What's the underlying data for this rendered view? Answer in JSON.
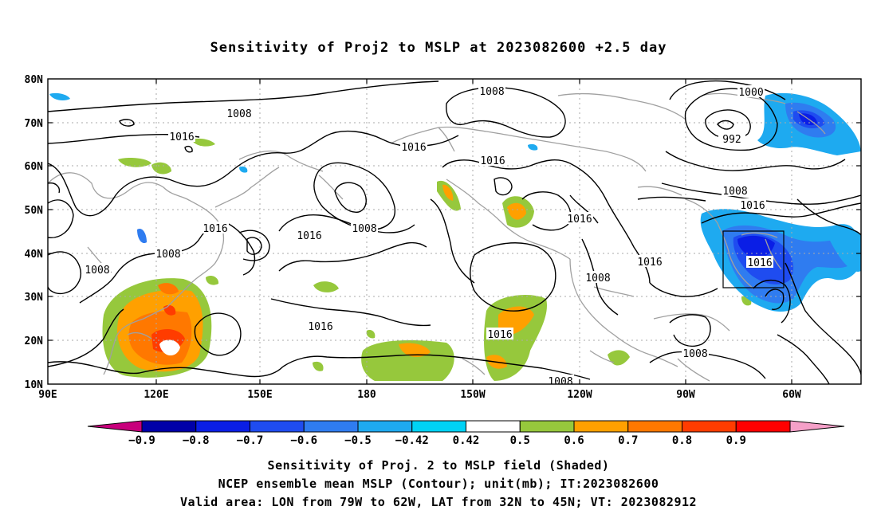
{
  "title": "Sensitivity of Proj2 to MSLP at 2023082600 +2.5 day",
  "y_ticks": [
    "80N",
    "70N",
    "60N",
    "50N",
    "40N",
    "30N",
    "20N",
    "10N"
  ],
  "x_ticks": [
    "90E",
    "120E",
    "150E",
    "180",
    "150W",
    "120W",
    "90W",
    "60W"
  ],
  "contour_labels": [
    "1008",
    "1008",
    "1016",
    "1016",
    "1008",
    "1008",
    "1016",
    "1016",
    "1008",
    "1016",
    "1016",
    "1016",
    "1000",
    "992",
    "1008",
    "1016",
    "1016",
    "1016",
    "1008",
    "1016",
    "1008",
    "1008"
  ],
  "colorbar": {
    "labels": [
      "-0.9",
      "-0.8",
      "-0.7",
      "-0.6",
      "-0.5",
      "-0.42",
      "0.42",
      "0.5",
      "0.6",
      "0.7",
      "0.8",
      "0.9"
    ],
    "colors": [
      "#c8007c",
      "#0000a8",
      "#0a1ee6",
      "#1f4cf0",
      "#2f7cf0",
      "#1eaaf0",
      "#00d2f5",
      "#ffffff",
      "#96c83c",
      "#ffa000",
      "#ff7800",
      "#ff3c00",
      "#ff0000",
      "#f5a0c8"
    ]
  },
  "footer": {
    "line1": "Sensitivity of Proj. 2 to MSLP field (Shaded)",
    "line2": "NCEP ensemble mean MSLP (Contour); unit(mb); IT:2023082600",
    "line3": "Valid area: LON from 79W to 62W, LAT from 32N to 45N; VT: 2023082912"
  }
}
